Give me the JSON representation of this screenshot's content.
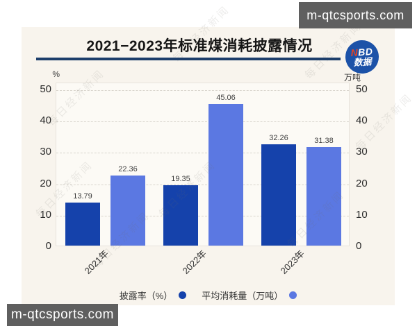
{
  "watermark": {
    "site_text": "m-qtcsports.com",
    "diagonal_text": "每日经济新闻"
  },
  "card": {
    "title": "2021−2023年标准煤消耗披露情况",
    "badge": {
      "n": "N",
      "bd": "BD",
      "line2": "数据"
    }
  },
  "chart_data": {
    "type": "bar",
    "title": "2021−2023年标准煤消耗披露情况",
    "categories": [
      "2021年",
      "2022年",
      "2023年"
    ],
    "series": [
      {
        "name": "披露率（%）",
        "values": [
          13.79,
          19.35,
          32.26
        ],
        "color": "#1542ab"
      },
      {
        "name": "平均消耗量（万吨）",
        "values": [
          22.36,
          45.06,
          31.38
        ],
        "color": "#5b78e2"
      }
    ],
    "left_axis": {
      "unit": "%",
      "ticks": [
        0,
        10,
        20,
        30,
        40,
        50
      ]
    },
    "right_axis": {
      "unit": "万吨",
      "ticks": [
        0,
        10,
        20,
        30,
        40,
        50
      ]
    },
    "ylim": [
      0,
      50
    ],
    "grid": true,
    "legend_position": "bottom"
  }
}
